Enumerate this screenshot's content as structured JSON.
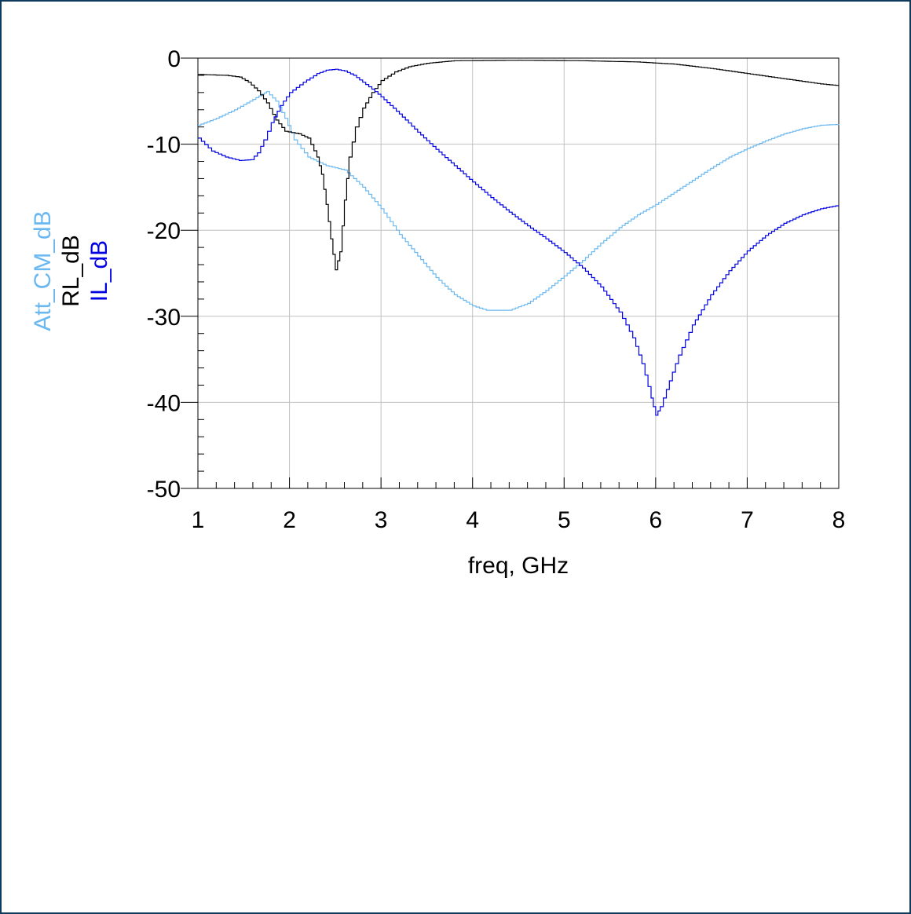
{
  "chart_data": {
    "type": "line",
    "xlabel": "freq, GHz",
    "ylabels": [
      {
        "text": "Att_CM_dB",
        "color": "#6bb8f0"
      },
      {
        "text": "RL_dB",
        "color": "#000000"
      },
      {
        "text": "IL_dB",
        "color": "#0000e0"
      }
    ],
    "xlim": [
      1,
      8
    ],
    "ylim": [
      -50,
      0
    ],
    "xticks": [
      "1",
      "2",
      "3",
      "4",
      "5",
      "6",
      "7",
      "8"
    ],
    "yticks": [
      "0",
      "-10",
      "-20",
      "-30",
      "-40",
      "-50"
    ],
    "grid": true,
    "series": [
      {
        "name": "Att_CM_dB",
        "color": "#6bb8f0",
        "points": [
          [
            1.0,
            -7.8
          ],
          [
            1.2,
            -7.0
          ],
          [
            1.4,
            -6.0
          ],
          [
            1.6,
            -4.8
          ],
          [
            1.7,
            -4.2
          ],
          [
            1.75,
            -3.9
          ],
          [
            1.85,
            -5.0
          ],
          [
            1.95,
            -7.0
          ],
          [
            2.05,
            -9.5
          ],
          [
            2.2,
            -11.5
          ],
          [
            2.4,
            -12.5
          ],
          [
            2.6,
            -13.0
          ],
          [
            2.8,
            -15.0
          ],
          [
            3.0,
            -17.5
          ],
          [
            3.2,
            -20.5
          ],
          [
            3.4,
            -23.0
          ],
          [
            3.6,
            -25.5
          ],
          [
            3.8,
            -27.5
          ],
          [
            4.0,
            -28.8
          ],
          [
            4.15,
            -29.3
          ],
          [
            4.4,
            -29.3
          ],
          [
            4.6,
            -28.5
          ],
          [
            4.8,
            -27.0
          ],
          [
            5.0,
            -25.3
          ],
          [
            5.2,
            -23.5
          ],
          [
            5.4,
            -21.5
          ],
          [
            5.6,
            -19.7
          ],
          [
            5.8,
            -18.2
          ],
          [
            6.0,
            -17.0
          ],
          [
            6.2,
            -15.6
          ],
          [
            6.4,
            -14.2
          ],
          [
            6.6,
            -12.8
          ],
          [
            6.8,
            -11.5
          ],
          [
            7.0,
            -10.5
          ],
          [
            7.2,
            -9.6
          ],
          [
            7.4,
            -8.8
          ],
          [
            7.6,
            -8.2
          ],
          [
            7.8,
            -7.8
          ],
          [
            8.0,
            -7.7
          ]
        ]
      },
      {
        "name": "RL_dB",
        "color": "#000000",
        "points": [
          [
            1.0,
            -1.9
          ],
          [
            1.3,
            -2.0
          ],
          [
            1.45,
            -2.2
          ],
          [
            1.55,
            -2.8
          ],
          [
            1.65,
            -3.8
          ],
          [
            1.75,
            -5.2
          ],
          [
            1.85,
            -7.2
          ],
          [
            1.95,
            -8.5
          ],
          [
            2.1,
            -8.8
          ],
          [
            2.2,
            -9.3
          ],
          [
            2.3,
            -11.5
          ],
          [
            2.35,
            -13.5
          ],
          [
            2.4,
            -17.0
          ],
          [
            2.45,
            -21.0
          ],
          [
            2.5,
            -24.6
          ],
          [
            2.55,
            -22.5
          ],
          [
            2.6,
            -16.5
          ],
          [
            2.65,
            -11.5
          ],
          [
            2.72,
            -8.0
          ],
          [
            2.8,
            -5.8
          ],
          [
            2.9,
            -4.0
          ],
          [
            3.0,
            -2.6
          ],
          [
            3.15,
            -1.6
          ],
          [
            3.3,
            -1.0
          ],
          [
            3.5,
            -0.6
          ],
          [
            3.8,
            -0.3
          ],
          [
            4.5,
            -0.25
          ],
          [
            5.2,
            -0.3
          ],
          [
            5.8,
            -0.45
          ],
          [
            6.2,
            -0.7
          ],
          [
            6.6,
            -1.2
          ],
          [
            7.0,
            -1.8
          ],
          [
            7.4,
            -2.4
          ],
          [
            7.8,
            -3.0
          ],
          [
            8.0,
            -3.2
          ]
        ]
      },
      {
        "name": "IL_dB",
        "color": "#0000e0",
        "points": [
          [
            1.0,
            -9.3
          ],
          [
            1.15,
            -10.8
          ],
          [
            1.3,
            -11.5
          ],
          [
            1.45,
            -11.9
          ],
          [
            1.58,
            -11.8
          ],
          [
            1.65,
            -11.0
          ],
          [
            1.72,
            -9.5
          ],
          [
            1.8,
            -7.5
          ],
          [
            1.9,
            -5.5
          ],
          [
            2.0,
            -4.0
          ],
          [
            2.15,
            -2.8
          ],
          [
            2.3,
            -1.8
          ],
          [
            2.4,
            -1.4
          ],
          [
            2.5,
            -1.3
          ],
          [
            2.6,
            -1.5
          ],
          [
            2.7,
            -2.0
          ],
          [
            2.8,
            -2.8
          ],
          [
            2.9,
            -3.6
          ],
          [
            3.0,
            -4.5
          ],
          [
            3.2,
            -6.5
          ],
          [
            3.4,
            -8.6
          ],
          [
            3.6,
            -10.6
          ],
          [
            3.8,
            -12.5
          ],
          [
            4.0,
            -14.4
          ],
          [
            4.2,
            -16.2
          ],
          [
            4.4,
            -17.9
          ],
          [
            4.6,
            -19.5
          ],
          [
            4.8,
            -21.0
          ],
          [
            5.0,
            -22.6
          ],
          [
            5.2,
            -24.4
          ],
          [
            5.4,
            -26.6
          ],
          [
            5.6,
            -29.5
          ],
          [
            5.75,
            -32.5
          ],
          [
            5.85,
            -35.5
          ],
          [
            5.95,
            -39.5
          ],
          [
            6.0,
            -41.5
          ],
          [
            6.05,
            -40.5
          ],
          [
            6.15,
            -37.5
          ],
          [
            6.25,
            -34.5
          ],
          [
            6.4,
            -31.0
          ],
          [
            6.6,
            -27.5
          ],
          [
            6.8,
            -24.7
          ],
          [
            7.0,
            -22.4
          ],
          [
            7.2,
            -20.6
          ],
          [
            7.4,
            -19.2
          ],
          [
            7.6,
            -18.2
          ],
          [
            7.8,
            -17.5
          ],
          [
            8.0,
            -17.1
          ]
        ]
      }
    ]
  }
}
